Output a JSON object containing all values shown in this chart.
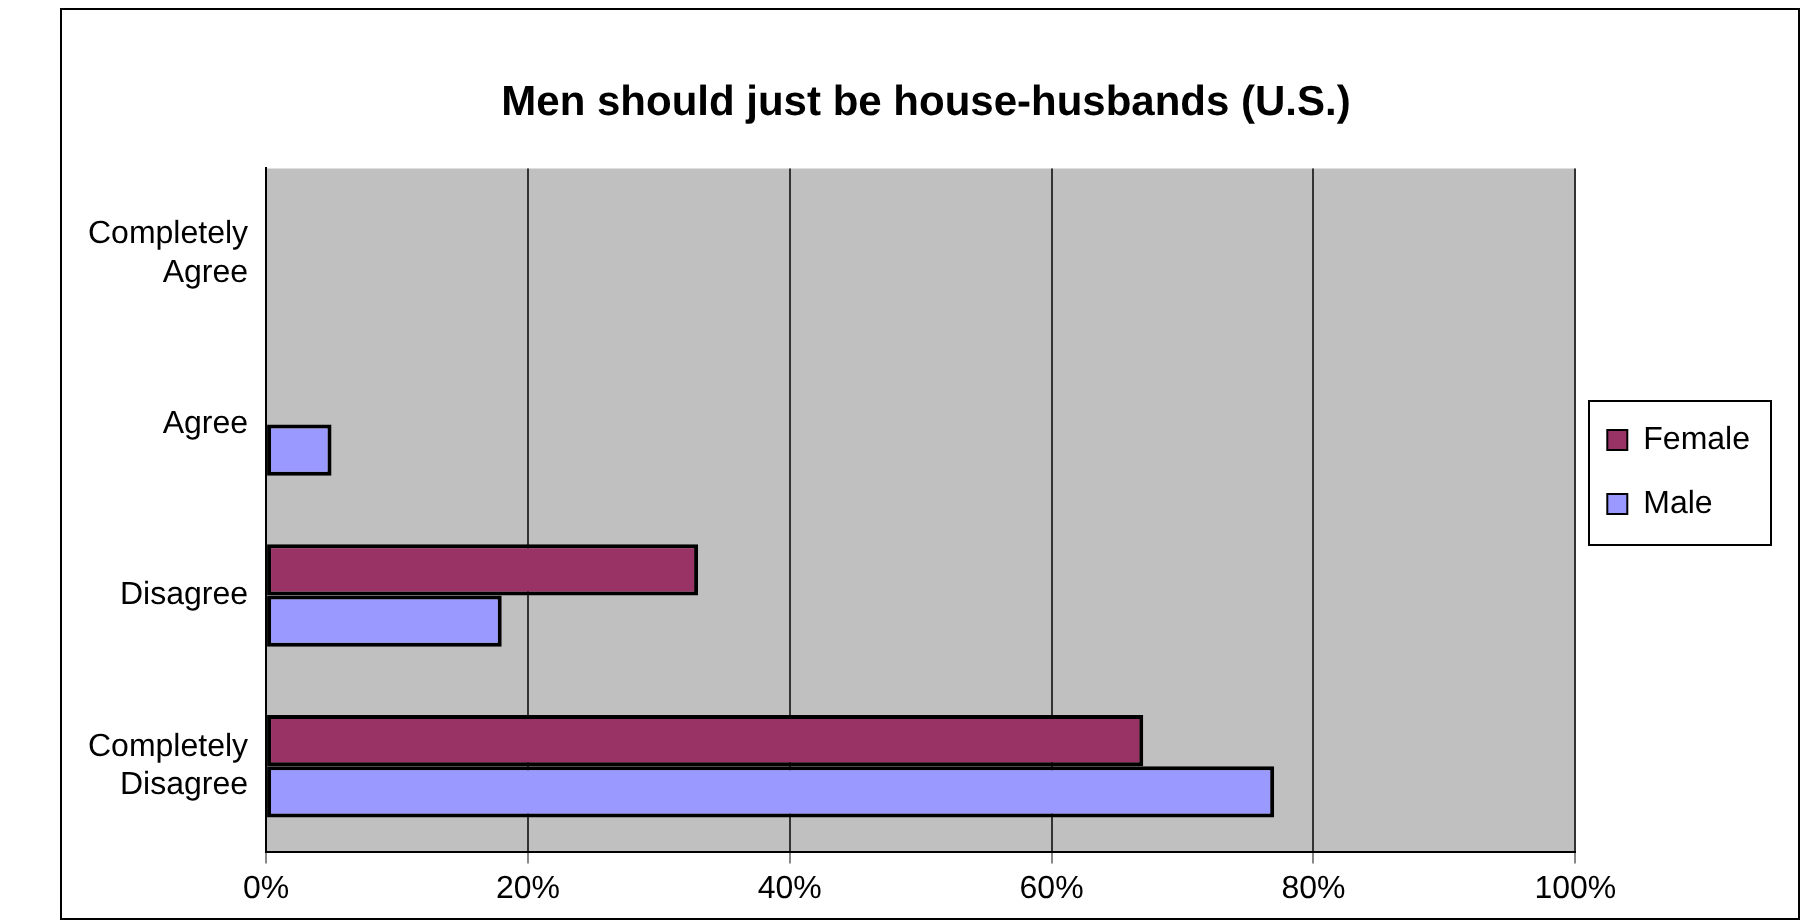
{
  "chart_data": {
    "type": "bar",
    "orientation": "horizontal",
    "title": "Men should just be house-husbands (U.S.)",
    "categories": [
      "Completely Agree",
      "Agree",
      "Disagree",
      "Completely Disagree"
    ],
    "series": [
      {
        "name": "Female",
        "color": "#993366",
        "values": [
          0,
          0,
          33,
          67
        ]
      },
      {
        "name": "Male",
        "color": "#9999ff",
        "values": [
          0,
          5,
          18,
          77
        ]
      }
    ],
    "xlim": [
      0,
      100
    ],
    "xticks": [
      {
        "value": 0,
        "label": "0%"
      },
      {
        "value": 20,
        "label": "20%"
      },
      {
        "value": 40,
        "label": "40%"
      },
      {
        "value": 60,
        "label": "60%"
      },
      {
        "value": 80,
        "label": "80%"
      },
      {
        "value": 100,
        "label": "100%"
      }
    ],
    "grid": "x",
    "legend": "right"
  }
}
